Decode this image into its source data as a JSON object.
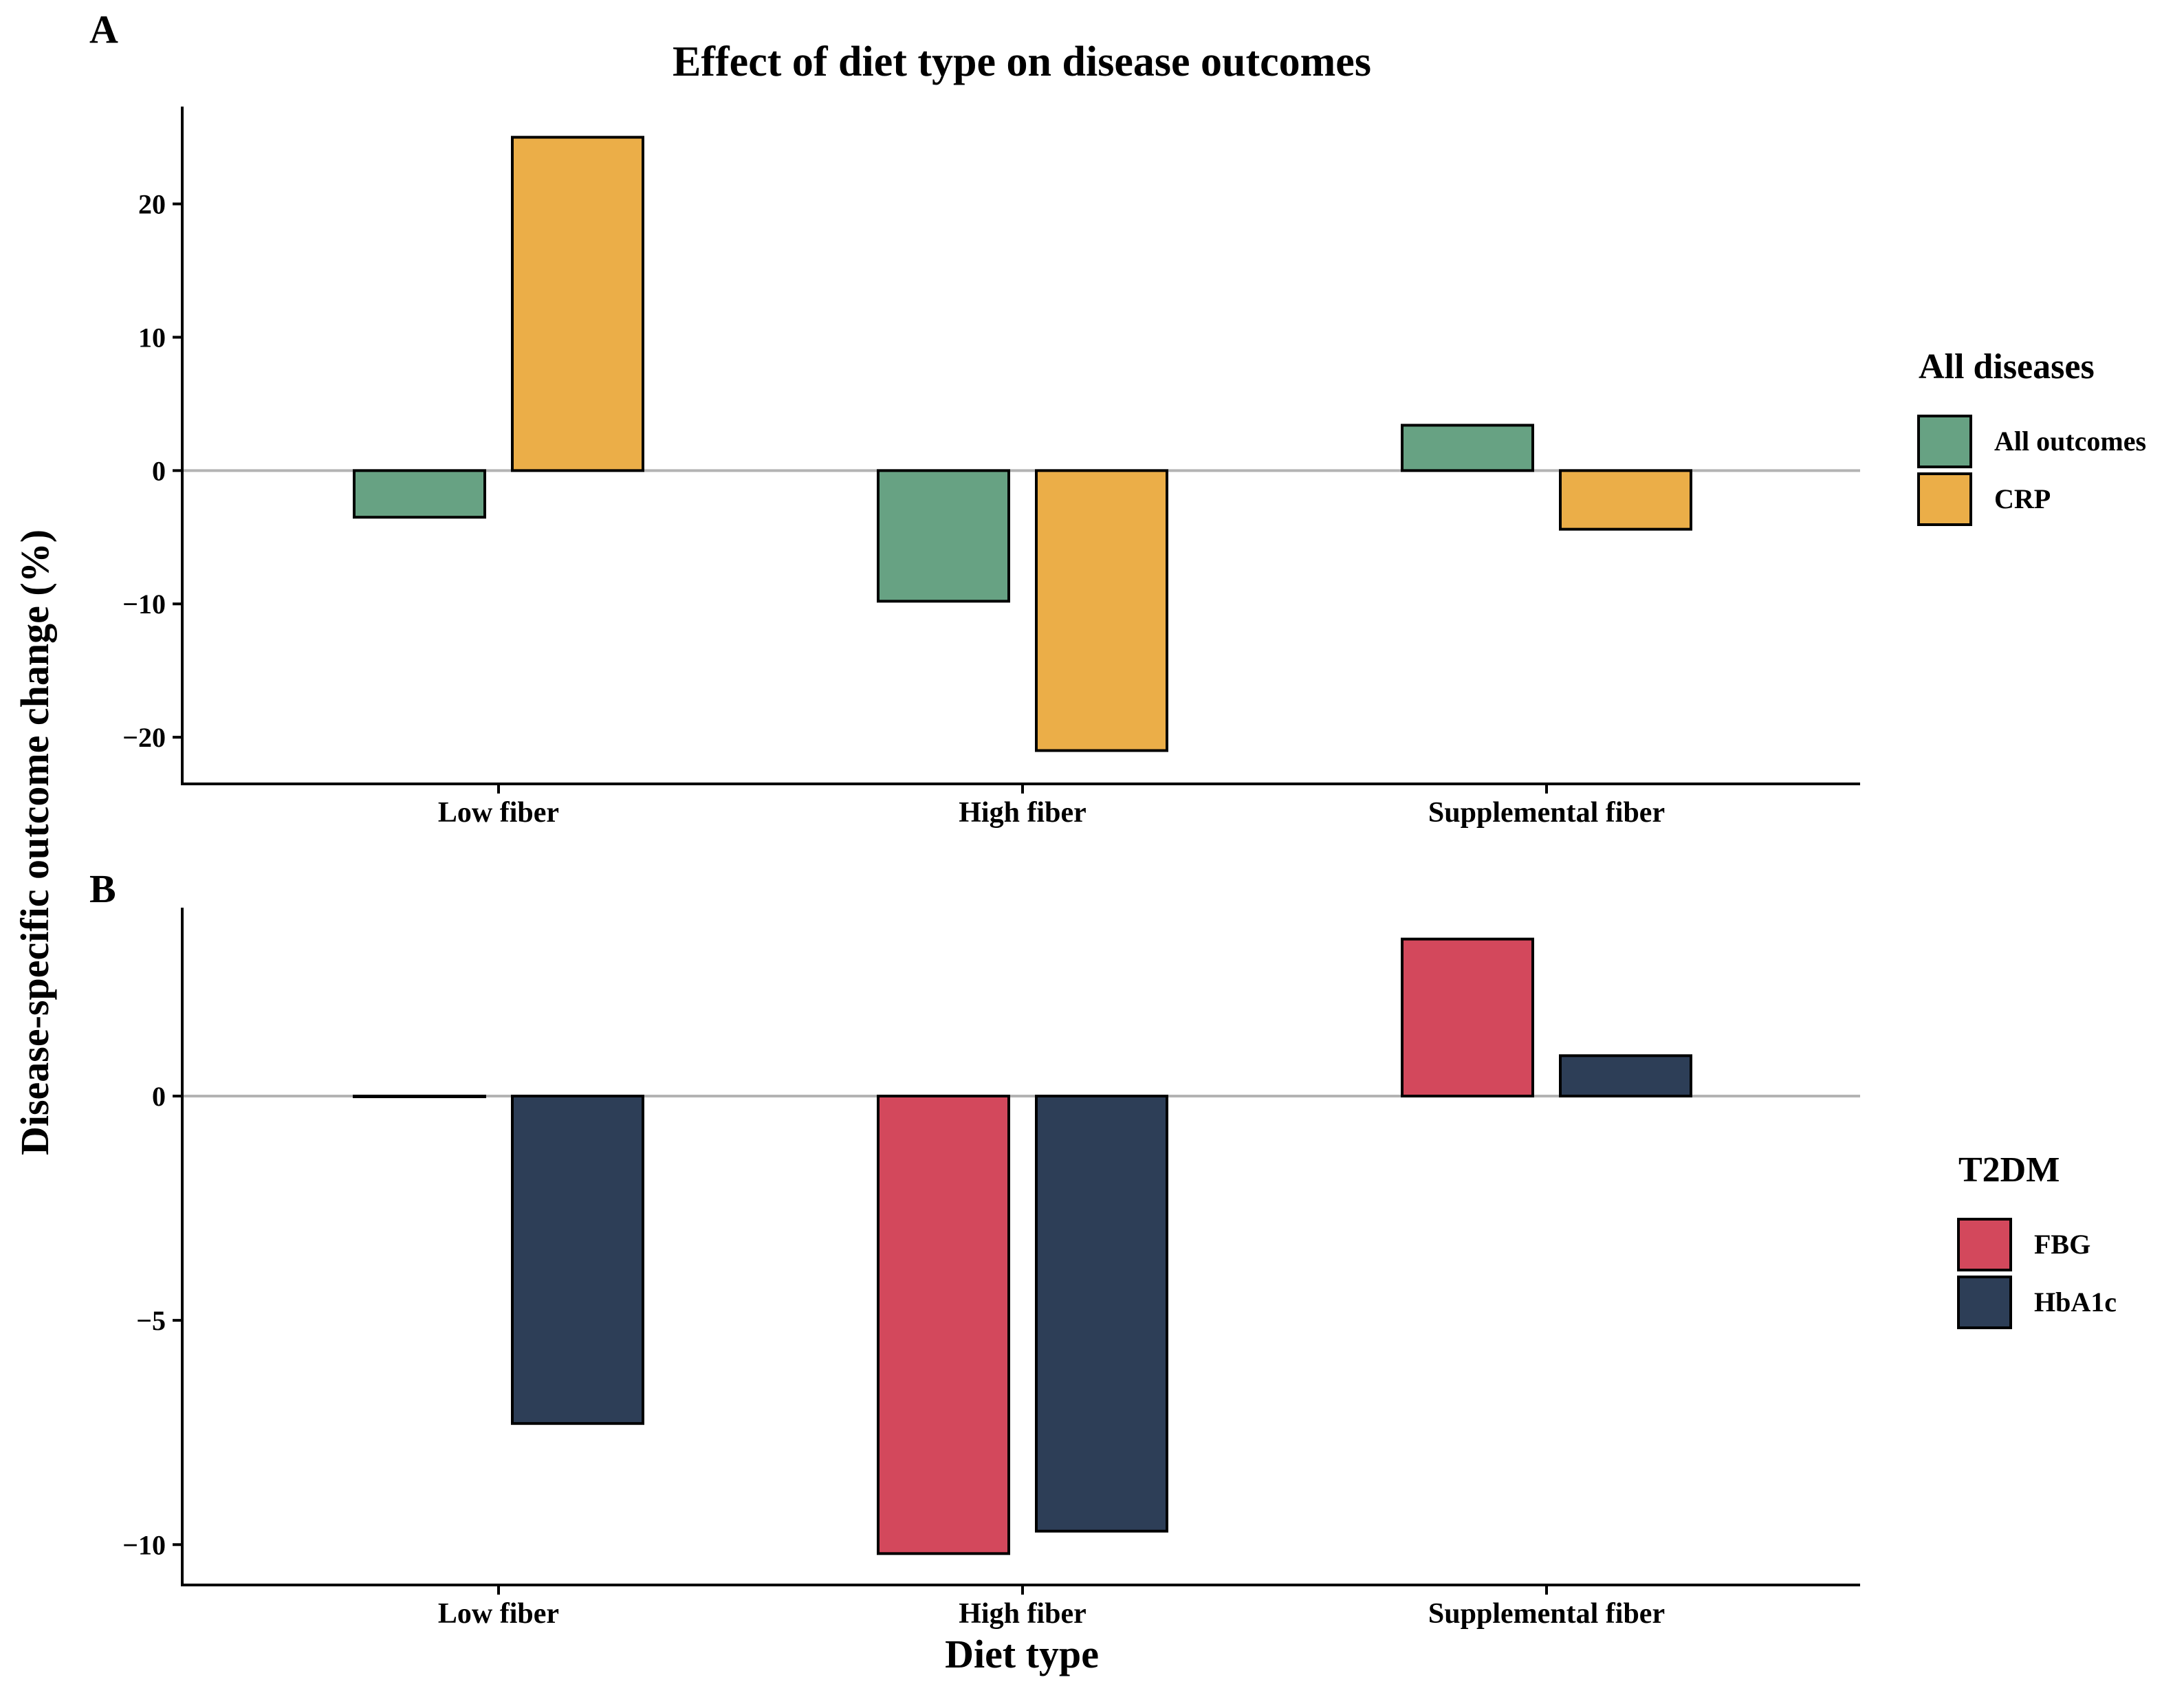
{
  "figure": {
    "title": "Effect of diet type on disease outcomes",
    "ylabel": "Disease-specific outcome change (%)",
    "xlabel": "Diet type"
  },
  "chart_data": [
    {
      "panel": "A",
      "type": "bar",
      "categories": [
        "Low fiber",
        "High fiber",
        "Supplemental fiber"
      ],
      "series": [
        {
          "name": "All outcomes",
          "color": "#67a283",
          "values": [
            -3.5,
            -9.8,
            3.4
          ]
        },
        {
          "name": "CRP",
          "color": "#ebae48",
          "values": [
            25.0,
            -21.0,
            -4.4
          ]
        }
      ],
      "legend_title": "All diseases",
      "ylim": [
        -23.5,
        27.3
      ],
      "yticks": [
        -20,
        -10,
        0,
        10,
        20
      ],
      "ytick_labels": [
        "−20",
        "−10",
        "0",
        "10",
        "20"
      ]
    },
    {
      "panel": "B",
      "type": "bar",
      "categories": [
        "Low fiber",
        "High fiber",
        "Supplemental fiber"
      ],
      "series": [
        {
          "name": "FBG",
          "color": "#d3485c",
          "values": [
            0.0,
            -10.2,
            3.5
          ]
        },
        {
          "name": "HbA1c",
          "color": "#2d3e57",
          "values": [
            -7.3,
            -9.7,
            0.9
          ]
        }
      ],
      "legend_title": "T2DM",
      "ylim": [
        -10.9,
        4.2
      ],
      "yticks": [
        -10,
        -5,
        0
      ],
      "ytick_labels": [
        "−10",
        "−5",
        "0"
      ]
    }
  ]
}
